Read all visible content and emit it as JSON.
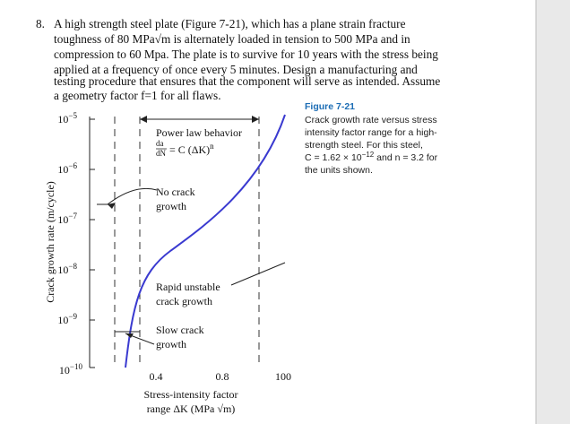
{
  "problem": {
    "number": "8.",
    "lines": [
      "A high strength steel plate (Figure 7-21), which has a plane strain fracture",
      "toughness of 80 MPa√m is alternately loaded in tension to 500 MPa and in",
      "compression to 60 Mpa. The plate is to survive for 10 years with the stress being",
      "applied at a frequency of once every 5 minutes. Design a manufacturing and",
      "testing procedure that ensures that the component will serve as intended. Assume",
      "a geometry factor f=1 for all flaws."
    ]
  },
  "figure": {
    "y_axis_label": "Crack growth rate (m/cycle)",
    "x_axis_label": [
      "Stress-intensity factor",
      "range ΔK (MPa √m)"
    ],
    "yticks": [
      {
        "base": "10",
        "exp": "−5"
      },
      {
        "base": "10",
        "exp": "−6"
      },
      {
        "base": "10",
        "exp": "−7"
      },
      {
        "base": "10",
        "exp": "−8"
      },
      {
        "base": "10",
        "exp": "−9"
      },
      {
        "base": "10",
        "exp": "−10"
      }
    ],
    "xticks": [
      "0.4",
      "0.8",
      "100"
    ],
    "annotations": {
      "power_law": {
        "title": "Power law behavior",
        "da": "da",
        "dn": "dN",
        "rest": "= C (ΔK)",
        "n": "n"
      },
      "no_crack": [
        "No crack",
        "growth"
      ],
      "rapid": [
        "Rapid unstable",
        "crack growth"
      ],
      "slow": [
        "Slow crack",
        "growth"
      ]
    }
  },
  "caption": {
    "title": "Figure 7-21",
    "lines": [
      "Crack growth rate versus stress",
      "intensity factor range for a high-",
      "strength steel. For this steel,"
    ],
    "formula": {
      "c": "C = 1.62 × 10",
      "exp": "−12",
      "rest": " and n = 3.2 for"
    },
    "last": "the units shown."
  }
}
